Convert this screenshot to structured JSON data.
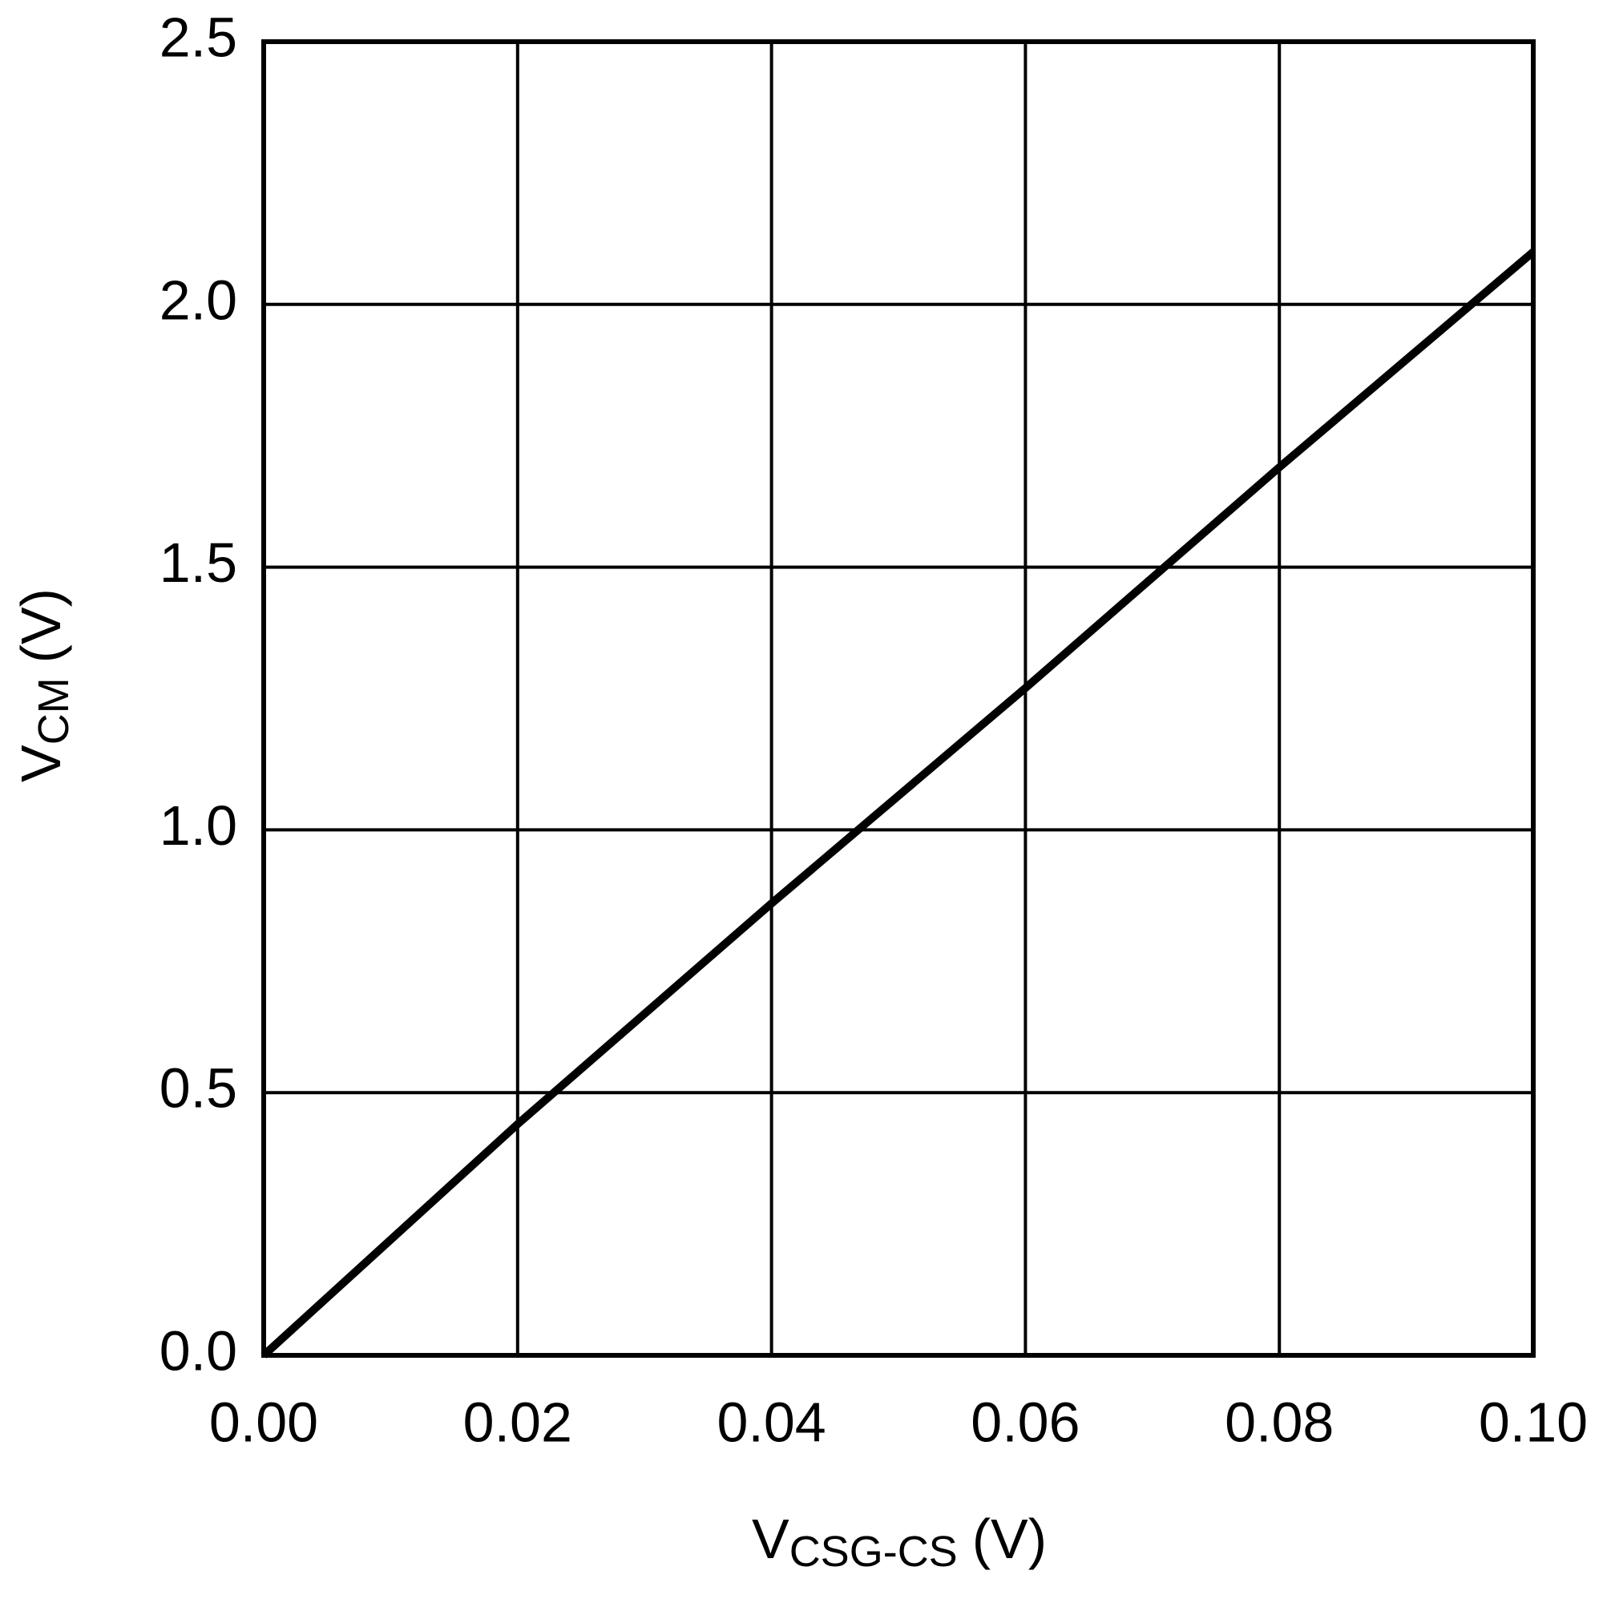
{
  "chart_data": {
    "type": "line",
    "xlabel": [
      "V",
      "CSG-CS",
      "(V)"
    ],
    "ylabel": [
      "V",
      "CM",
      "(V)"
    ],
    "x": [
      0,
      0.02,
      0.04,
      0.06,
      0.08,
      0.1
    ],
    "series": [
      {
        "color": "#000000",
        "values": [
          0,
          0.44,
          0.86,
          1.27,
          1.69,
          2.1
        ]
      }
    ],
    "xlim": [
      0,
      0.1
    ],
    "ylim": [
      0,
      2.5
    ],
    "xticks": [
      {
        "value": 0,
        "label": "0.00"
      },
      {
        "value": 0.02,
        "label": "0.02"
      },
      {
        "value": 0.04,
        "label": "0.04"
      },
      {
        "value": 0.06,
        "label": "0.06"
      },
      {
        "value": 0.08,
        "label": "0.08"
      },
      {
        "value": 0.1,
        "label": "0.10"
      }
    ],
    "yticks": [
      {
        "value": 0,
        "label": "0.0"
      },
      0.5,
      {
        "value": 1,
        "label": "1.0"
      },
      1.5,
      {
        "value": 2,
        "label": "2.0"
      },
      2.5
    ],
    "grid": true
  }
}
